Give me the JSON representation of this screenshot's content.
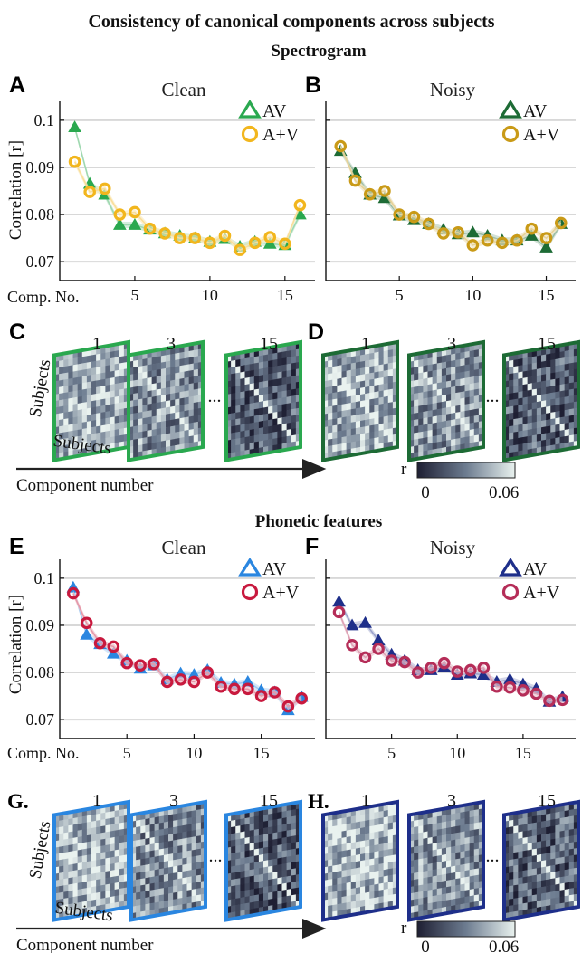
{
  "figure": {
    "title": "Consistency of canonical components across subjects",
    "section_spectrogram": "Spectrogram",
    "section_phonetic": "Phonetic features",
    "ylabel": "Correlation [r]",
    "xlabel_prefix": "Comp. No.",
    "matrix_axis_label": "Subjects",
    "component_arrow_label": "Component number",
    "matrix_numbers": [
      "1",
      "3",
      "15"
    ],
    "ellipsis": "...",
    "colorbar": {
      "label": "r",
      "min_label": "0",
      "max_label": "0.06",
      "min": 0,
      "max": 0.06
    },
    "letters": {
      "A": "A",
      "B": "B",
      "C": "C",
      "D": "D",
      "E": "E",
      "F": "F",
      "G": "G.",
      "H": "H."
    },
    "colors": {
      "spec_clean_av": "#2aa84f",
      "spec_clean_apv": "#f2b61d",
      "spec_noisy_av": "#1d6b35",
      "spec_noisy_apv": "#c99a17",
      "phon_clean_av": "#2a86e0",
      "phon_clean_apv": "#c8193e",
      "phon_noisy_av": "#1e2f8a",
      "phon_noisy_apv": "#b52d58",
      "gridline": "#d8d8d8"
    }
  },
  "chart_data": [
    {
      "id": "A",
      "type": "line",
      "title": "Clean",
      "section": "Spectrogram",
      "ylabel": "Correlation [r]",
      "xlabel": "Comp. No.",
      "xlim": [
        0,
        17
      ],
      "ylim": [
        0.066,
        0.104
      ],
      "xticks": [
        5,
        10,
        15
      ],
      "yticks": [
        0.07,
        0.08,
        0.09,
        0.1
      ],
      "ytick_labels": [
        "0.07",
        "0.08",
        "0.09",
        "0.1"
      ],
      "grid": "horizontal",
      "legend_position": "top-right",
      "x": [
        1,
        2,
        3,
        4,
        5,
        6,
        7,
        8,
        9,
        10,
        11,
        12,
        13,
        14,
        15,
        16
      ],
      "series": [
        {
          "name": "AV",
          "marker": "triangle",
          "color_key": "spec_clean_av",
          "values": [
            0.0985,
            0.0865,
            0.0842,
            0.0778,
            0.0778,
            0.0768,
            0.076,
            0.0755,
            0.075,
            0.0742,
            0.0748,
            0.0732,
            0.0742,
            0.0738,
            0.0735,
            0.08
          ]
        },
        {
          "name": "A+V",
          "marker": "circle",
          "color_key": "spec_clean_apv",
          "values": [
            0.0912,
            0.0848,
            0.0855,
            0.08,
            0.0805,
            0.077,
            0.076,
            0.075,
            0.075,
            0.074,
            0.0755,
            0.0725,
            0.074,
            0.0752,
            0.0738,
            0.082
          ]
        }
      ]
    },
    {
      "id": "B",
      "type": "line",
      "title": "Noisy",
      "section": "Spectrogram",
      "xlim": [
        0,
        17
      ],
      "ylim": [
        0.066,
        0.104
      ],
      "xticks": [
        5,
        10,
        15
      ],
      "yticks": [
        0.07,
        0.08,
        0.09,
        0.1
      ],
      "grid": "horizontal",
      "legend_position": "top-right",
      "x": [
        1,
        2,
        3,
        4,
        5,
        6,
        7,
        8,
        9,
        10,
        11,
        12,
        13,
        14,
        15,
        16
      ],
      "series": [
        {
          "name": "AV",
          "marker": "triangle",
          "color_key": "spec_noisy_av",
          "values": [
            0.0935,
            0.0888,
            0.0842,
            0.0835,
            0.0798,
            0.0788,
            0.078,
            0.0768,
            0.0758,
            0.0762,
            0.0755,
            0.0745,
            0.0745,
            0.0755,
            0.073,
            0.078
          ]
        },
        {
          "name": "A+V",
          "marker": "circle",
          "color_key": "spec_noisy_apv",
          "values": [
            0.0945,
            0.0872,
            0.0843,
            0.085,
            0.08,
            0.0795,
            0.078,
            0.076,
            0.0762,
            0.0735,
            0.0745,
            0.074,
            0.0745,
            0.077,
            0.075,
            0.0782
          ]
        }
      ]
    },
    {
      "id": "E",
      "type": "line",
      "title": "Clean",
      "section": "Phonetic features",
      "ylabel": "Correlation [r]",
      "xlabel": "Comp. No.",
      "xlim": [
        0,
        19
      ],
      "ylim": [
        0.066,
        0.104
      ],
      "xticks": [
        5,
        10,
        15
      ],
      "yticks": [
        0.07,
        0.08,
        0.09,
        0.1
      ],
      "ytick_labels": [
        "0.07",
        "0.08",
        "0.09",
        "0.1"
      ],
      "grid": "horizontal",
      "legend_position": "top-right",
      "x": [
        1,
        2,
        3,
        4,
        5,
        6,
        7,
        8,
        9,
        10,
        11,
        12,
        13,
        14,
        15,
        16,
        17,
        18
      ],
      "series": [
        {
          "name": "AV",
          "marker": "triangle",
          "color_key": "phon_clean_av",
          "values": [
            0.098,
            0.088,
            0.086,
            0.084,
            0.0825,
            0.0808,
            0.0815,
            0.0785,
            0.0798,
            0.0795,
            0.0805,
            0.0778,
            0.0775,
            0.078,
            0.0762,
            0.0758,
            0.072,
            0.0748
          ]
        },
        {
          "name": "A+V",
          "marker": "circle",
          "color_key": "phon_clean_apv",
          "values": [
            0.0968,
            0.0905,
            0.0862,
            0.0855,
            0.082,
            0.0815,
            0.0818,
            0.078,
            0.0785,
            0.078,
            0.08,
            0.077,
            0.0765,
            0.0765,
            0.075,
            0.0758,
            0.0728,
            0.0745
          ]
        }
      ]
    },
    {
      "id": "F",
      "type": "line",
      "title": "Noisy",
      "section": "Phonetic features",
      "xlim": [
        0,
        19
      ],
      "ylim": [
        0.066,
        0.104
      ],
      "xticks": [
        5,
        10,
        15
      ],
      "yticks": [
        0.07,
        0.08,
        0.09,
        0.1
      ],
      "grid": "horizontal",
      "legend_position": "top-right",
      "x": [
        1,
        2,
        3,
        4,
        5,
        6,
        7,
        8,
        9,
        10,
        11,
        12,
        13,
        14,
        15,
        16,
        17,
        18
      ],
      "series": [
        {
          "name": "AV",
          "marker": "triangle",
          "color_key": "phon_noisy_av",
          "values": [
            0.095,
            0.09,
            0.0905,
            0.0868,
            0.0838,
            0.0825,
            0.0805,
            0.0805,
            0.0812,
            0.0795,
            0.0798,
            0.0795,
            0.078,
            0.0785,
            0.0775,
            0.0765,
            0.0738,
            0.0748
          ]
        },
        {
          "name": "A+V",
          "marker": "circle",
          "color_key": "phon_noisy_apv",
          "values": [
            0.0928,
            0.0858,
            0.0832,
            0.085,
            0.0825,
            0.0822,
            0.08,
            0.081,
            0.082,
            0.0802,
            0.0805,
            0.081,
            0.077,
            0.0768,
            0.0762,
            0.0755,
            0.074,
            0.0742
          ]
        }
      ]
    },
    {
      "id": "C",
      "type": "heatmap",
      "section": "Spectrogram",
      "condition": "Clean",
      "components": [
        "1",
        "3",
        "15"
      ],
      "xlabel": "Subjects",
      "ylabel": "Subjects",
      "color_key": "spec_clean_av",
      "mean_intensity": [
        0.045,
        0.035,
        0.018
      ],
      "diagonal": [
        false,
        true,
        true
      ]
    },
    {
      "id": "D",
      "type": "heatmap",
      "section": "Spectrogram",
      "condition": "Noisy",
      "components": [
        "1",
        "3",
        "15"
      ],
      "color_key": "spec_noisy_av",
      "mean_intensity": [
        0.043,
        0.036,
        0.02
      ],
      "diagonal": [
        true,
        true,
        true
      ]
    },
    {
      "id": "G",
      "type": "heatmap",
      "section": "Phonetic features",
      "condition": "Clean",
      "components": [
        "1",
        "3",
        "15"
      ],
      "xlabel": "Subjects",
      "ylabel": "Subjects",
      "color_key": "phon_clean_av",
      "mean_intensity": [
        0.044,
        0.034,
        0.019
      ],
      "diagonal": [
        false,
        true,
        true
      ]
    },
    {
      "id": "H",
      "type": "heatmap",
      "section": "Phonetic features",
      "condition": "Noisy",
      "components": [
        "1",
        "3",
        "15"
      ],
      "color_key": "phon_noisy_av",
      "mean_intensity": [
        0.045,
        0.035,
        0.02
      ],
      "diagonal": [
        true,
        true,
        true
      ]
    }
  ]
}
